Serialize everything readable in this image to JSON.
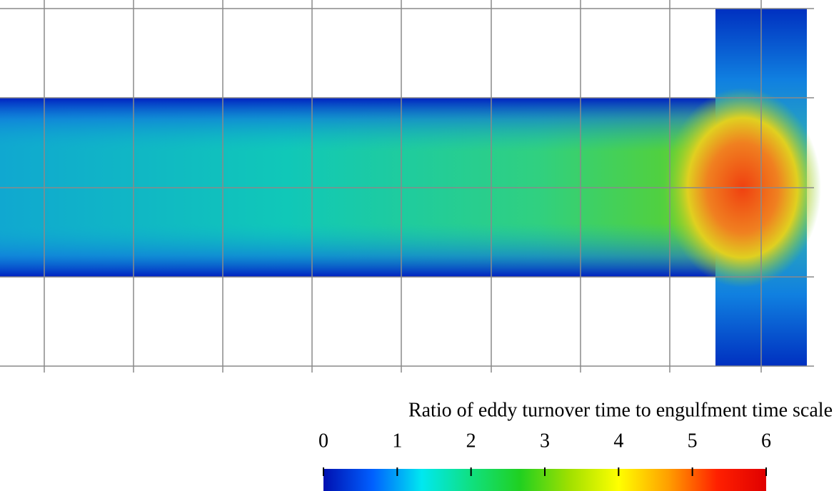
{
  "chart_data": {
    "type": "colorbar",
    "title": "Ratio of eddy turnover time to engulfment time scale",
    "clim": [
      0,
      6
    ],
    "ticks": [
      0,
      1,
      2,
      3,
      4,
      5,
      6
    ],
    "colors": [
      "#0010b0",
      "#0060ff",
      "#00e8f0",
      "#10e080",
      "#20d020",
      "#a0e000",
      "#ffff00",
      "#ffa000",
      "#ff2000",
      "#e00000"
    ]
  }
}
